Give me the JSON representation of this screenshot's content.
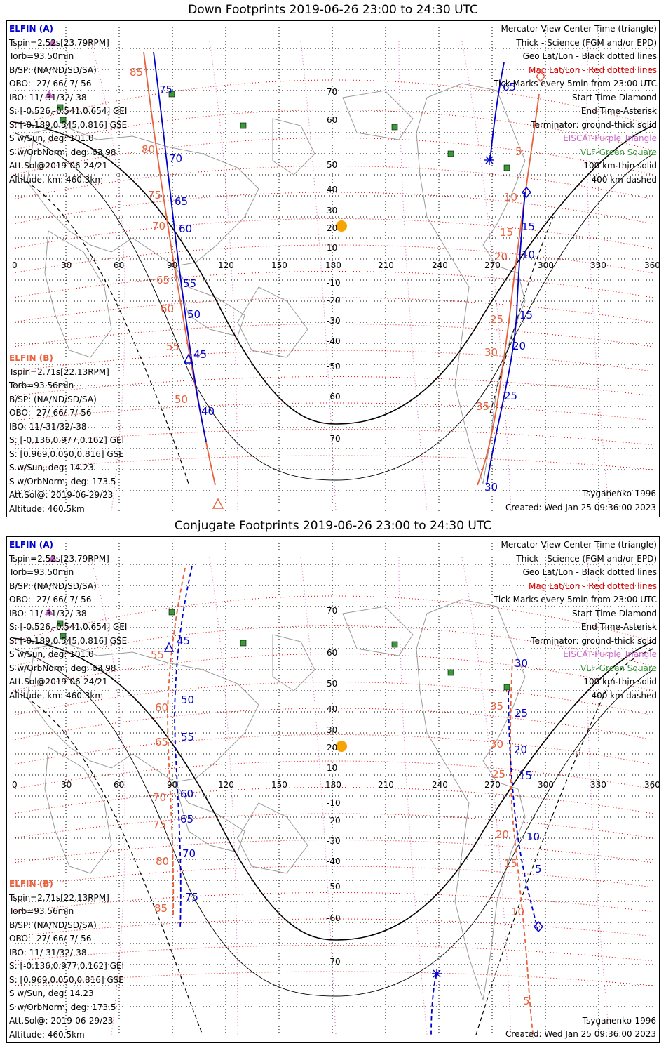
{
  "titles": {
    "top": "Down Footprints 2019-06-26 23:00 to 24:30 UTC",
    "bottom": "Conjugate Footprints 2019-06-26 23:00 to 24:30 UTC"
  },
  "elfin_a": {
    "name": "ELFIN (A)",
    "lines": [
      "Tspin=2.52s[23.79RPM]",
      "Torb=93.50min",
      "B/SP: (NA/ND/SD/SA)",
      "OBO: -27/-66/-7/-56",
      "IBO: 11/-31/32/-38",
      "S: [-0.526,-0.541,0.654] GEI",
      "S: [-0.189,0.545,0.816] GSE",
      "S w/Sun, deg: 101.0",
      "S w/OrbNorm, deg: 63.98",
      "Att.Sol@2019-06-24/21",
      "Altitude, km: 460.3km"
    ]
  },
  "elfin_b": {
    "name": "ELFIN (B)",
    "lines": [
      "Tspin=2.71s[22.13RPM]",
      "Torb=93.56min",
      "B/SP: (NA/ND/SD/SA)",
      "OBO: -27/-66/-7/-56",
      "IBO: 11/-31/32/-38",
      "S: [-0.136,0.977,0.162] GEI",
      "S: [0.969,0.050,0.816] GSE",
      "S w/Sun, deg: 14.23",
      "S w/OrbNorm, deg: 173.5",
      "Att.Sol@: 2019-06-29/23",
      "Altitude: 460.5km"
    ]
  },
  "legend": {
    "l1": "Mercator View Center Time (triangle)",
    "l2": "Thick - Science (FGM and/or EPD)",
    "l3": "Geo Lat/Lon - Black dotted lines",
    "l4": "Mag Lat/Lon - Red dotted lines",
    "l5": "Tick Marks every 5min from 23:00 UTC",
    "l6": "Start Time-Diamond",
    "l7": "End Time-Asterisk",
    "l8": "Terminator: ground-thick solid",
    "l9": "EISCAT-Purple Triangle",
    "l10": "VLF-Green Square",
    "l11": "100 km-thin solid",
    "l12": "400 km-dashed"
  },
  "model": "Tsyganenko-1996",
  "created": "Created: Wed Jan 25 09:36:00 2023",
  "axes": {
    "lon": [
      "0",
      "30",
      "60",
      "90",
      "120",
      "150",
      "180",
      "210",
      "240",
      "270",
      "300",
      "330",
      "360"
    ],
    "lat_top": [
      "70",
      "60",
      "50",
      "40",
      "30",
      "20",
      "10",
      "-10",
      "-20",
      "-30",
      "-40",
      "-50",
      "-60",
      "-70"
    ],
    "lat_bottom": [
      "70",
      "60",
      "50",
      "40",
      "30",
      "20",
      "10",
      "-10",
      "-20",
      "-30",
      "-40",
      "-50",
      "-60",
      "-70"
    ]
  },
  "top_labels": {
    "a_left": [
      "75",
      "70",
      "65",
      "60",
      "55",
      "50",
      "45",
      "40"
    ],
    "b_left": [
      "85",
      "80",
      "75",
      "70",
      "65",
      "60",
      "55",
      "50"
    ],
    "a_right": [
      "65",
      "15",
      "10",
      "15",
      "20",
      "25",
      "30"
    ],
    "b_right": [
      "5",
      "10",
      "15",
      "20",
      "25",
      "30",
      "35"
    ]
  },
  "bottom_labels": {
    "a_left": [
      "45",
      "50",
      "55",
      "60",
      "65",
      "70",
      "75"
    ],
    "b_left": [
      "55",
      "60",
      "65",
      "70",
      "75",
      "80",
      "85"
    ],
    "a_right": [
      "30",
      "25",
      "20",
      "15",
      "10",
      "5"
    ],
    "b_right": [
      "35",
      "30",
      "25",
      "20",
      "15",
      "10",
      "5"
    ]
  },
  "colors": {
    "elfin_a": "#0000cc",
    "elfin_b": "#e8603c",
    "mag_grid": "#e00000",
    "sun": "#f5a400",
    "vlf": "#3a9a3a",
    "eiscat": "#cc66cc"
  }
}
